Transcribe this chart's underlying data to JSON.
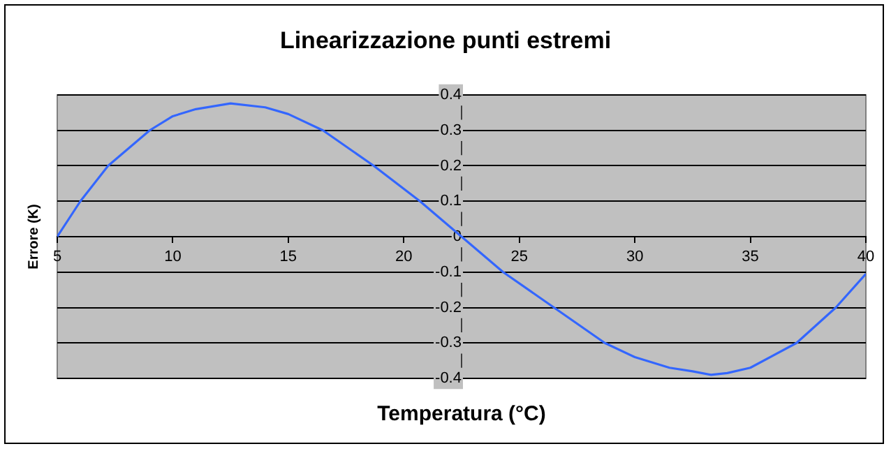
{
  "chart_data": {
    "type": "line",
    "title": "Linearizzazione punti estremi",
    "xlabel": "Temperatura (°C)",
    "ylabel": "Errore (K)",
    "x": [
      5,
      6,
      7.2,
      9,
      10,
      11,
      12.5,
      14,
      15,
      16.5,
      18.7,
      20.7,
      22.5,
      24.3,
      26.5,
      28.7,
      30,
      31.5,
      32.5,
      33.3,
      34,
      35,
      37,
      38.7,
      40
    ],
    "series": [
      {
        "color": "#3366ff",
        "values": [
          0,
          0.1,
          0.2,
          0.3,
          0.34,
          0.36,
          0.376,
          0.365,
          0.346,
          0.3,
          0.2,
          0.1,
          0,
          -0.1,
          -0.2,
          -0.3,
          -0.34,
          -0.37,
          -0.38,
          -0.39,
          -0.385,
          -0.37,
          -0.3,
          -0.2,
          -0.105
        ]
      }
    ],
    "xlim": [
      5,
      40
    ],
    "xticks": [
      5,
      10,
      15,
      20,
      25,
      30,
      35,
      40
    ],
    "ylim": [
      -0.4,
      0.4
    ],
    "yticks": [
      -0.4,
      -0.3,
      -0.2,
      -0.1,
      0,
      0.1,
      0.2,
      0.3,
      0.4
    ],
    "grid": "y",
    "legend": false,
    "marker": "none",
    "line_style": "solid"
  }
}
